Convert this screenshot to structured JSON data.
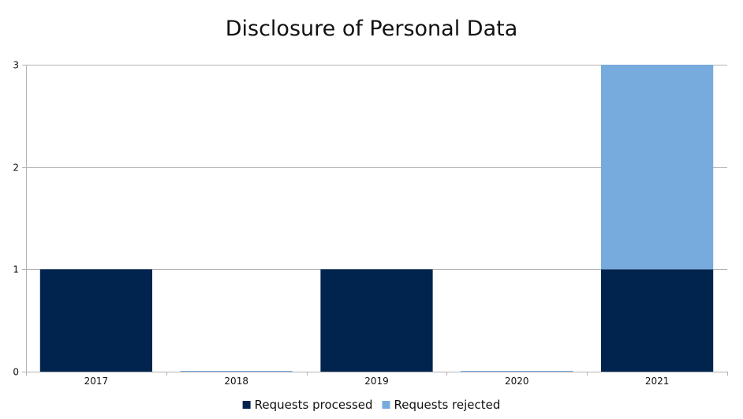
{
  "chart_data": {
    "type": "bar",
    "stacked": true,
    "title": "Disclosure of Personal Data",
    "xlabel": "",
    "ylabel": "",
    "categories": [
      "2017",
      "2018",
      "2019",
      "2020",
      "2021"
    ],
    "series": [
      {
        "name": "Requests processed",
        "values": [
          1,
          0,
          1,
          0,
          1
        ],
        "color": "#00244d"
      },
      {
        "name": "Requests rejected",
        "values": [
          0,
          0,
          0,
          0,
          2
        ],
        "color": "#77aadd"
      }
    ],
    "ylim": [
      0,
      3
    ],
    "yticks": [
      "0",
      "1",
      "2",
      "3"
    ],
    "grid": true,
    "legend_position": "bottom"
  }
}
